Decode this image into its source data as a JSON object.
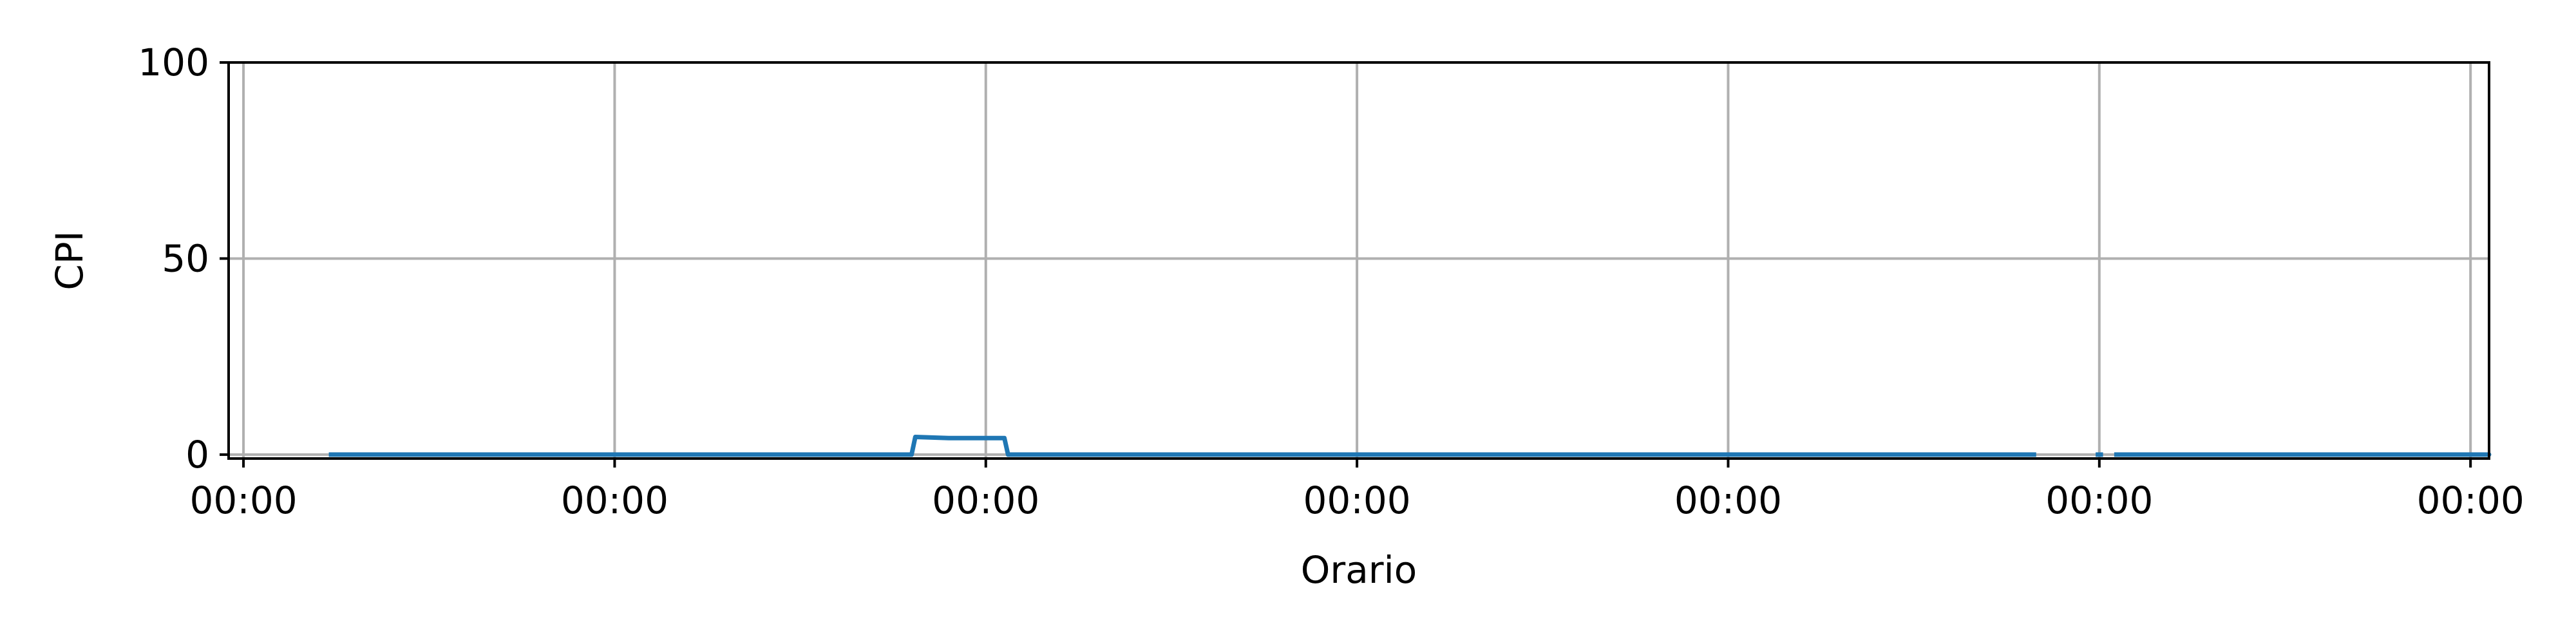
{
  "chart_data": {
    "type": "line",
    "title": "",
    "xlabel": "Orario",
    "ylabel": "CPI",
    "x_tick_labels": [
      "00:00",
      "00:00",
      "00:00",
      "00:00",
      "00:00",
      "00:00",
      "00:00"
    ],
    "x_ticks": [
      0,
      1,
      2,
      3,
      4,
      5,
      6
    ],
    "xlim": [
      -0.04,
      6.05
    ],
    "y_ticks": [
      0,
      50,
      100
    ],
    "ylim": [
      -1,
      100
    ],
    "grid": true,
    "colors": {
      "line": "#1f77b4",
      "grid": "#b0b0b0",
      "axis": "#000000"
    },
    "series": [
      {
        "segments": [
          {
            "x": [
              0.23,
              1.8,
              1.81,
              1.9,
              2.0,
              2.05,
              2.06,
              3.0,
              4.0,
              4.83
            ],
            "y": [
              0,
              0,
              4.5,
              4.2,
              4.2,
              4.2,
              0,
              0,
              0,
              0
            ]
          },
          {
            "x": [
              4.99,
              5.01
            ],
            "y": [
              0,
              0
            ]
          },
          {
            "x": [
              5.04,
              6.0,
              6.5,
              5.78
            ],
            "y": [
              0,
              0,
              0,
              0
            ]
          }
        ]
      }
    ]
  }
}
